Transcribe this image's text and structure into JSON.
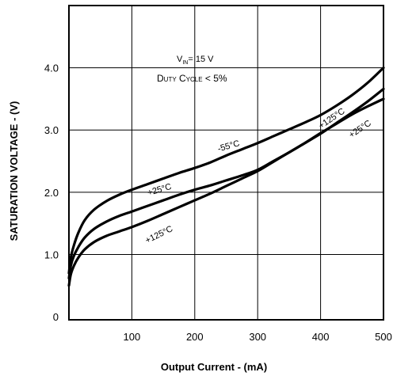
{
  "chart_data": {
    "type": "line",
    "xlabel": "Output Current - (mA)",
    "ylabel": "SATURATION VOLTAGE - (V)",
    "xlim": [
      0,
      500
    ],
    "ylim": [
      -0.05,
      5.0
    ],
    "x_ticks": [
      100,
      200,
      300,
      400,
      500
    ],
    "x_tick_labels": [
      "100",
      "200",
      "300",
      "400",
      "500"
    ],
    "y_ticks": [
      0,
      1.0,
      2.0,
      3.0,
      4.0
    ],
    "y_tick_labels": [
      "0",
      "1.0",
      "2.0",
      "3.0",
      "4.0"
    ],
    "grid": true,
    "conditions": {
      "line1_prefix": "V",
      "line1_sub": "IN",
      "line1_suffix": "= 15 V",
      "line2": "Duty Cycle < 5%"
    },
    "series": [
      {
        "name": "-55°C",
        "x": [
          0,
          3,
          8,
          15,
          25,
          40,
          60,
          80,
          100,
          125,
          150,
          175,
          200,
          225,
          250,
          275,
          300,
          325,
          350,
          375,
          400,
          425,
          450,
          475,
          500
        ],
        "y": [
          0.7,
          0.95,
          1.15,
          1.35,
          1.55,
          1.72,
          1.86,
          1.96,
          2.04,
          2.13,
          2.22,
          2.31,
          2.39,
          2.48,
          2.59,
          2.69,
          2.79,
          2.9,
          3.01,
          3.12,
          3.24,
          3.39,
          3.56,
          3.76,
          4.0
        ]
      },
      {
        "name": "+25°C",
        "x": [
          0,
          3,
          8,
          15,
          25,
          40,
          60,
          80,
          100,
          125,
          150,
          175,
          200,
          225,
          250,
          275,
          300,
          325,
          350,
          375,
          400,
          425,
          450,
          475,
          500
        ],
        "y": [
          0.62,
          0.82,
          0.98,
          1.12,
          1.27,
          1.41,
          1.53,
          1.62,
          1.69,
          1.78,
          1.87,
          1.96,
          2.04,
          2.11,
          2.19,
          2.27,
          2.36,
          2.5,
          2.64,
          2.79,
          2.95,
          3.1,
          3.25,
          3.38,
          3.5
        ]
      },
      {
        "name": "+125°C",
        "x": [
          0,
          3,
          8,
          15,
          25,
          40,
          60,
          80,
          100,
          125,
          150,
          175,
          200,
          225,
          250,
          275,
          300,
          325,
          350,
          375,
          400,
          425,
          450,
          475,
          500
        ],
        "y": [
          0.5,
          0.68,
          0.82,
          0.95,
          1.08,
          1.2,
          1.3,
          1.37,
          1.44,
          1.54,
          1.65,
          1.76,
          1.87,
          1.98,
          2.1,
          2.22,
          2.34,
          2.49,
          2.64,
          2.79,
          2.94,
          3.11,
          3.28,
          3.46,
          3.66
        ]
      }
    ],
    "annotations": [
      {
        "text": "-55°C",
        "x": 255,
        "y": 2.7,
        "angle": -16
      },
      {
        "text": "+25°C",
        "x": 145,
        "y": 2.0,
        "angle": -16
      },
      {
        "text": "+125°C",
        "x": 145,
        "y": 1.28,
        "angle": -26
      },
      {
        "text": "+125°C",
        "x": 420,
        "y": 3.15,
        "angle": -34
      },
      {
        "text": "+25°C",
        "x": 465,
        "y": 2.98,
        "angle": -34
      }
    ]
  }
}
